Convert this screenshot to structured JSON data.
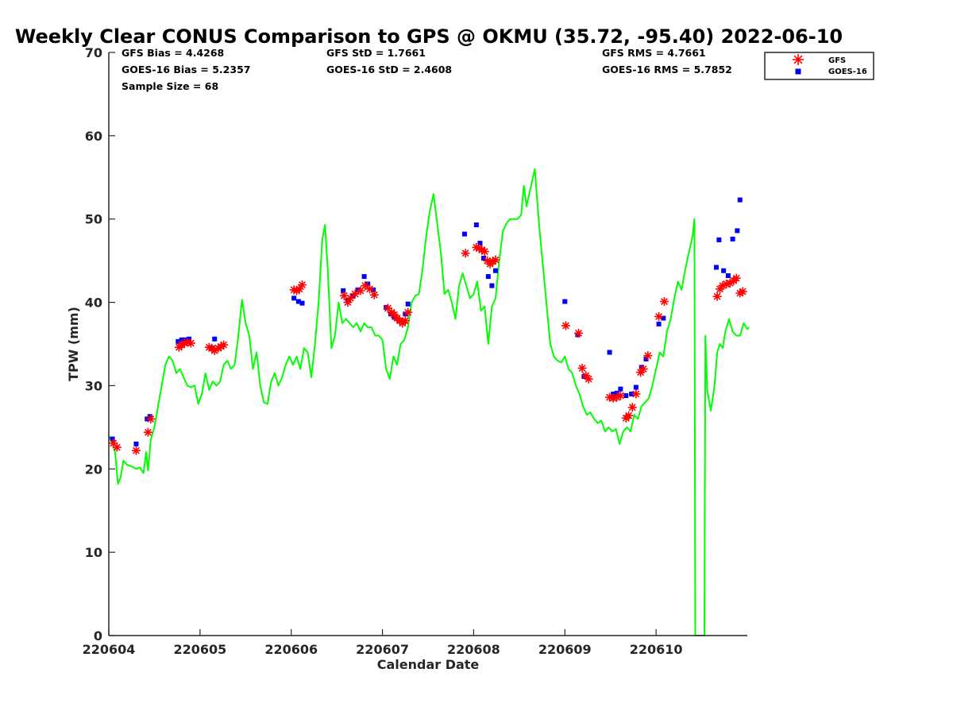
{
  "chart_data": {
    "type": "scatter",
    "title": "Weekly Clear CONUS Comparison to GPS @ OKMU (35.72, -95.40) 2022-06-10",
    "xlabel": "Calendar Date",
    "ylabel": "TPW (mm)",
    "ylim": [
      0,
      70
    ],
    "xlim": [
      "220604",
      "220611"
    ],
    "x_ticks": [
      "220604",
      "220605",
      "220606",
      "220607",
      "220608",
      "220609",
      "220610"
    ],
    "y_ticks": [
      0,
      10,
      20,
      30,
      40,
      50,
      60,
      70
    ],
    "grid": false,
    "legend_position": "top-right",
    "stats": {
      "gfs_bias": "GFS Bias = 4.4268",
      "goes_bias": "GOES-16 Bias = 5.2357",
      "sample_size": "Sample Size = 68",
      "gfs_std": "GFS StD = 1.7661",
      "goes_std": "GOES-16 StD = 2.4608",
      "gfs_rms": "GFS RMS = 4.7661",
      "goes_rms": "GOES-16 RMS = 5.7852"
    },
    "series": [
      {
        "name": "GFS",
        "color": "#ff0000",
        "marker": "asterisk",
        "points": [
          [
            0.05,
            23.1
          ],
          [
            0.09,
            22.6
          ],
          [
            0.3,
            22.2
          ],
          [
            0.43,
            24.4
          ],
          [
            0.46,
            26.0
          ],
          [
            0.77,
            34.6
          ],
          [
            0.8,
            34.9
          ],
          [
            0.83,
            35.1
          ],
          [
            0.86,
            35.2
          ],
          [
            0.9,
            35.1
          ],
          [
            1.1,
            34.6
          ],
          [
            1.13,
            34.5
          ],
          [
            1.16,
            34.2
          ],
          [
            1.2,
            34.5
          ],
          [
            1.23,
            34.7
          ],
          [
            1.26,
            34.9
          ],
          [
            2.03,
            41.5
          ],
          [
            2.06,
            41.4
          ],
          [
            2.09,
            41.6
          ],
          [
            2.12,
            42.1
          ],
          [
            2.58,
            40.8
          ],
          [
            2.62,
            40.0
          ],
          [
            2.65,
            40.5
          ],
          [
            2.7,
            41.0
          ],
          [
            2.76,
            41.4
          ],
          [
            2.81,
            42.0
          ],
          [
            2.86,
            41.6
          ],
          [
            2.91,
            40.9
          ],
          [
            3.06,
            39.3
          ],
          [
            3.1,
            38.8
          ],
          [
            3.13,
            38.5
          ],
          [
            3.16,
            38.1
          ],
          [
            3.19,
            37.8
          ],
          [
            3.22,
            37.5
          ],
          [
            3.25,
            37.8
          ],
          [
            3.28,
            38.8
          ],
          [
            3.91,
            45.9
          ],
          [
            4.03,
            46.6
          ],
          [
            4.06,
            46.5
          ],
          [
            4.09,
            46.3
          ],
          [
            4.12,
            46.1
          ],
          [
            4.15,
            45.0
          ],
          [
            4.18,
            44.6
          ],
          [
            4.21,
            44.9
          ],
          [
            4.24,
            45.1
          ],
          [
            5.01,
            37.2
          ],
          [
            5.15,
            36.3
          ],
          [
            5.19,
            32.1
          ],
          [
            5.23,
            31.2
          ],
          [
            5.26,
            30.8
          ],
          [
            5.49,
            28.6
          ],
          [
            5.53,
            28.5
          ],
          [
            5.57,
            28.6
          ],
          [
            5.61,
            28.8
          ],
          [
            5.67,
            26.1
          ],
          [
            5.7,
            26.4
          ],
          [
            5.74,
            27.4
          ],
          [
            5.78,
            29.0
          ],
          [
            5.83,
            31.6
          ],
          [
            5.86,
            32.0
          ],
          [
            5.91,
            33.6
          ],
          [
            6.03,
            38.3
          ],
          [
            6.09,
            40.1
          ],
          [
            6.67,
            40.7
          ],
          [
            6.7,
            41.6
          ],
          [
            6.73,
            42.0
          ],
          [
            6.77,
            42.2
          ],
          [
            6.81,
            42.3
          ],
          [
            6.85,
            42.6
          ],
          [
            6.88,
            42.9
          ],
          [
            6.92,
            41.1
          ],
          [
            6.95,
            41.3
          ]
        ]
      },
      {
        "name": "GOES-16",
        "color": "#0000ff",
        "marker": "square",
        "points": [
          [
            0.04,
            23.6
          ],
          [
            0.3,
            23.0
          ],
          [
            0.42,
            26.0
          ],
          [
            0.45,
            26.3
          ],
          [
            0.76,
            35.3
          ],
          [
            0.8,
            35.5
          ],
          [
            0.84,
            35.5
          ],
          [
            0.88,
            35.6
          ],
          [
            1.12,
            34.5
          ],
          [
            1.16,
            35.6
          ],
          [
            2.03,
            40.5
          ],
          [
            2.08,
            40.1
          ],
          [
            2.12,
            39.9
          ],
          [
            2.57,
            41.4
          ],
          [
            2.62,
            40.3
          ],
          [
            2.67,
            40.8
          ],
          [
            2.73,
            41.5
          ],
          [
            2.8,
            43.1
          ],
          [
            2.84,
            42.2
          ],
          [
            2.9,
            41.5
          ],
          [
            3.04,
            39.4
          ],
          [
            3.09,
            38.6
          ],
          [
            3.13,
            38.2
          ],
          [
            3.25,
            38.6
          ],
          [
            3.28,
            39.8
          ],
          [
            3.9,
            48.2
          ],
          [
            4.03,
            49.3
          ],
          [
            4.07,
            47.1
          ],
          [
            4.11,
            45.3
          ],
          [
            4.16,
            43.1
          ],
          [
            4.2,
            42.0
          ],
          [
            4.24,
            43.8
          ],
          [
            5.0,
            40.1
          ],
          [
            5.14,
            36.1
          ],
          [
            5.21,
            31.1
          ],
          [
            5.49,
            34.0
          ],
          [
            5.53,
            29.0
          ],
          [
            5.57,
            29.1
          ],
          [
            5.61,
            29.6
          ],
          [
            5.67,
            28.8
          ],
          [
            5.73,
            29.0
          ],
          [
            5.78,
            29.8
          ],
          [
            5.84,
            32.2
          ],
          [
            5.89,
            33.2
          ],
          [
            6.03,
            37.4
          ],
          [
            6.08,
            38.1
          ],
          [
            6.66,
            44.2
          ],
          [
            6.69,
            47.5
          ],
          [
            6.74,
            43.8
          ],
          [
            6.79,
            43.2
          ],
          [
            6.84,
            47.6
          ],
          [
            6.89,
            48.6
          ],
          [
            6.92,
            52.3
          ]
        ]
      },
      {
        "name": "",
        "color": "#00ff00",
        "marker": "line",
        "points": [
          [
            0.0,
            24.0
          ],
          [
            0.04,
            23.0
          ],
          [
            0.07,
            22.0
          ],
          [
            0.1,
            18.2
          ],
          [
            0.13,
            19.0
          ],
          [
            0.16,
            21.0
          ],
          [
            0.2,
            20.5
          ],
          [
            0.25,
            20.3
          ],
          [
            0.3,
            20.0
          ],
          [
            0.34,
            20.2
          ],
          [
            0.38,
            19.5
          ],
          [
            0.41,
            22.0
          ],
          [
            0.43,
            19.8
          ],
          [
            0.46,
            23.5
          ],
          [
            0.5,
            25.0
          ],
          [
            0.54,
            27.5
          ],
          [
            0.58,
            30.0
          ],
          [
            0.62,
            32.5
          ],
          [
            0.66,
            33.5
          ],
          [
            0.7,
            33.0
          ],
          [
            0.74,
            31.5
          ],
          [
            0.78,
            32.0
          ],
          [
            0.82,
            31.0
          ],
          [
            0.86,
            30.0
          ],
          [
            0.9,
            29.8
          ],
          [
            0.94,
            30.0
          ],
          [
            0.98,
            27.8
          ],
          [
            1.02,
            29.0
          ],
          [
            1.06,
            31.5
          ],
          [
            1.1,
            29.5
          ],
          [
            1.14,
            30.5
          ],
          [
            1.18,
            30.0
          ],
          [
            1.22,
            30.5
          ],
          [
            1.26,
            32.5
          ],
          [
            1.3,
            33.0
          ],
          [
            1.34,
            32.0
          ],
          [
            1.38,
            32.5
          ],
          [
            1.42,
            36.0
          ],
          [
            1.46,
            40.3
          ],
          [
            1.5,
            37.5
          ],
          [
            1.54,
            36.0
          ],
          [
            1.58,
            32.0
          ],
          [
            1.62,
            34.0
          ],
          [
            1.66,
            30.0
          ],
          [
            1.7,
            28.0
          ],
          [
            1.74,
            27.8
          ],
          [
            1.78,
            30.5
          ],
          [
            1.82,
            31.5
          ],
          [
            1.86,
            30.0
          ],
          [
            1.9,
            31.0
          ],
          [
            1.94,
            32.5
          ],
          [
            1.98,
            33.5
          ],
          [
            2.02,
            32.5
          ],
          [
            2.06,
            33.5
          ],
          [
            2.1,
            32.0
          ],
          [
            2.14,
            34.5
          ],
          [
            2.18,
            34.0
          ],
          [
            2.22,
            31.0
          ],
          [
            2.26,
            35.0
          ],
          [
            2.3,
            40.0
          ],
          [
            2.34,
            47.5
          ],
          [
            2.37,
            49.3
          ],
          [
            2.4,
            44.0
          ],
          [
            2.44,
            34.5
          ],
          [
            2.48,
            36.0
          ],
          [
            2.52,
            40.0
          ],
          [
            2.56,
            37.5
          ],
          [
            2.6,
            38.0
          ],
          [
            2.64,
            37.5
          ],
          [
            2.68,
            37.0
          ],
          [
            2.72,
            37.5
          ],
          [
            2.76,
            36.5
          ],
          [
            2.8,
            37.5
          ],
          [
            2.84,
            37.0
          ],
          [
            2.88,
            37.0
          ],
          [
            2.92,
            36.0
          ],
          [
            2.96,
            36.0
          ],
          [
            3.0,
            35.5
          ],
          [
            3.04,
            32.0
          ],
          [
            3.08,
            30.8
          ],
          [
            3.12,
            33.5
          ],
          [
            3.16,
            32.5
          ],
          [
            3.2,
            35.0
          ],
          [
            3.24,
            35.5
          ],
          [
            3.28,
            37.0
          ],
          [
            3.32,
            40.0
          ],
          [
            3.36,
            40.8
          ],
          [
            3.4,
            41.0
          ],
          [
            3.44,
            44.0
          ],
          [
            3.48,
            48.0
          ],
          [
            3.52,
            51.0
          ],
          [
            3.56,
            53.0
          ],
          [
            3.6,
            49.5
          ],
          [
            3.64,
            46.0
          ],
          [
            3.68,
            41.0
          ],
          [
            3.72,
            41.5
          ],
          [
            3.76,
            40.0
          ],
          [
            3.8,
            38.0
          ],
          [
            3.84,
            42.0
          ],
          [
            3.88,
            43.5
          ],
          [
            3.92,
            42.0
          ],
          [
            3.96,
            40.5
          ],
          [
            4.0,
            41.0
          ],
          [
            4.04,
            42.5
          ],
          [
            4.08,
            39.0
          ],
          [
            4.12,
            39.5
          ],
          [
            4.16,
            35.0
          ],
          [
            4.2,
            39.5
          ],
          [
            4.24,
            40.5
          ],
          [
            4.28,
            45.0
          ],
          [
            4.32,
            48.5
          ],
          [
            4.36,
            49.5
          ],
          [
            4.4,
            50.0
          ],
          [
            4.44,
            50.0
          ],
          [
            4.48,
            50.0
          ],
          [
            4.52,
            50.5
          ],
          [
            4.55,
            54.0
          ],
          [
            4.58,
            51.5
          ],
          [
            4.62,
            53.5
          ],
          [
            4.67,
            56.0
          ],
          [
            4.72,
            49.0
          ],
          [
            4.78,
            42.0
          ],
          [
            4.84,
            35.0
          ],
          [
            4.88,
            33.5
          ],
          [
            4.92,
            33.0
          ],
          [
            4.96,
            32.8
          ],
          [
            5.0,
            33.5
          ],
          [
            5.04,
            32.0
          ],
          [
            5.08,
            31.5
          ],
          [
            5.12,
            30.0
          ],
          [
            5.16,
            29.0
          ],
          [
            5.2,
            27.5
          ],
          [
            5.24,
            26.5
          ],
          [
            5.28,
            26.8
          ],
          [
            5.32,
            26.0
          ],
          [
            5.36,
            25.5
          ],
          [
            5.4,
            25.8
          ],
          [
            5.44,
            24.5
          ],
          [
            5.48,
            25.0
          ],
          [
            5.52,
            24.5
          ],
          [
            5.56,
            24.8
          ],
          [
            5.6,
            23.0
          ],
          [
            5.64,
            24.5
          ],
          [
            5.68,
            25.0
          ],
          [
            5.72,
            24.5
          ],
          [
            5.76,
            26.5
          ],
          [
            5.8,
            26.0
          ],
          [
            5.84,
            27.5
          ],
          [
            5.88,
            28.0
          ],
          [
            5.92,
            28.5
          ],
          [
            5.96,
            30.0
          ],
          [
            6.0,
            32.0
          ],
          [
            6.04,
            34.0
          ],
          [
            6.08,
            33.5
          ],
          [
            6.12,
            36.5
          ],
          [
            6.16,
            38.0
          ],
          [
            6.2,
            40.5
          ],
          [
            6.24,
            42.5
          ],
          [
            6.28,
            41.5
          ],
          [
            6.32,
            44.0
          ],
          [
            6.36,
            46.0
          ],
          [
            6.4,
            48.0
          ],
          [
            6.42,
            50.0
          ],
          [
            6.43,
            0.0
          ],
          [
            6.53,
            0.0
          ],
          [
            6.54,
            36.0
          ],
          [
            6.56,
            29.5
          ],
          [
            6.6,
            27.0
          ],
          [
            6.64,
            30.0
          ],
          [
            6.67,
            34.0
          ],
          [
            6.7,
            35.0
          ],
          [
            6.73,
            34.5
          ],
          [
            6.76,
            36.5
          ],
          [
            6.8,
            38.0
          ],
          [
            6.84,
            36.5
          ],
          [
            6.88,
            36.0
          ],
          [
            6.92,
            36.0
          ],
          [
            6.96,
            37.5
          ],
          [
            7.0,
            36.8
          ],
          [
            7.02,
            37.0
          ]
        ]
      }
    ]
  }
}
